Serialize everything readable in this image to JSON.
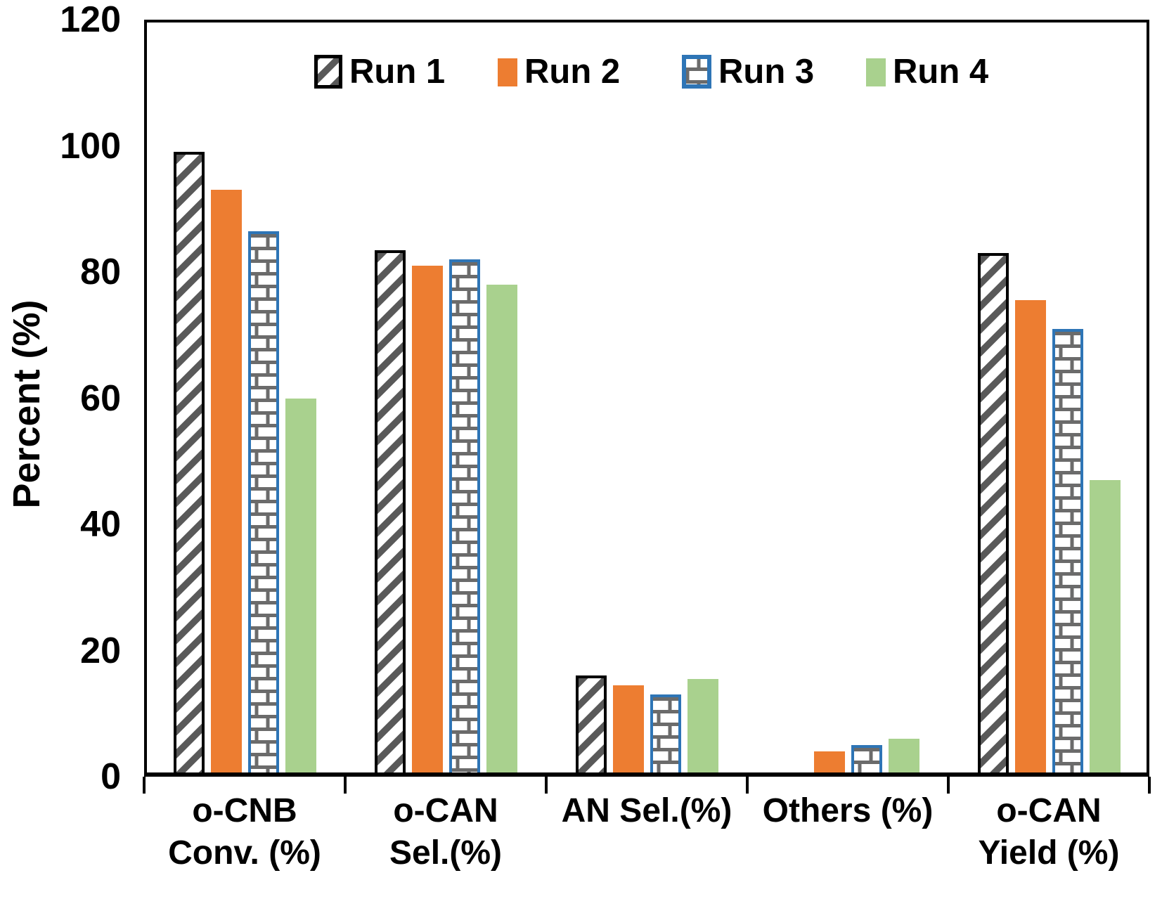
{
  "chart_data": {
    "type": "bar",
    "title": "",
    "xlabel": "",
    "ylabel": "Percent (%)",
    "ylim": [
      0,
      120
    ],
    "yticks": [
      120,
      100,
      80,
      60,
      40,
      20,
      0
    ],
    "grid": false,
    "legend_position": "top-inside",
    "categories": [
      "o-CNB Conv. (%)",
      "o-CAN Sel.(%)",
      "AN Sel.(%)",
      "Others (%)",
      "o-CAN Yield (%)"
    ],
    "category_label_lines": [
      [
        "o-CNB",
        "Conv. (%)"
      ],
      [
        "o-CAN",
        "Sel.(%)"
      ],
      [
        "AN Sel.(%)"
      ],
      [
        "Others (%)"
      ],
      [
        "o-CAN",
        "Yield (%)"
      ]
    ],
    "series": [
      {
        "name": "Run 1",
        "style": "hatch-diagonal",
        "values": [
          99,
          83.5,
          16,
          0,
          83
        ]
      },
      {
        "name": "Run 2",
        "style": "solid-orange",
        "values": [
          93,
          81,
          14.5,
          4,
          75.5
        ]
      },
      {
        "name": "Run 3",
        "style": "brick",
        "values": [
          86.5,
          82,
          13,
          5,
          71
        ]
      },
      {
        "name": "Run 4",
        "style": "solid-green",
        "values": [
          60,
          78,
          15.5,
          6,
          47
        ]
      }
    ]
  },
  "colors": {
    "run1_hatch_stripe": "#595959",
    "run1_border": "#000000",
    "run2_fill": "#ED7D31",
    "run3_border": "#2E75B6",
    "run3_brick_mortar": "#6B6B6B",
    "run4_fill": "#A9D18E",
    "axis_line": "#000000",
    "text": "#000000",
    "background": "#FFFFFF"
  }
}
